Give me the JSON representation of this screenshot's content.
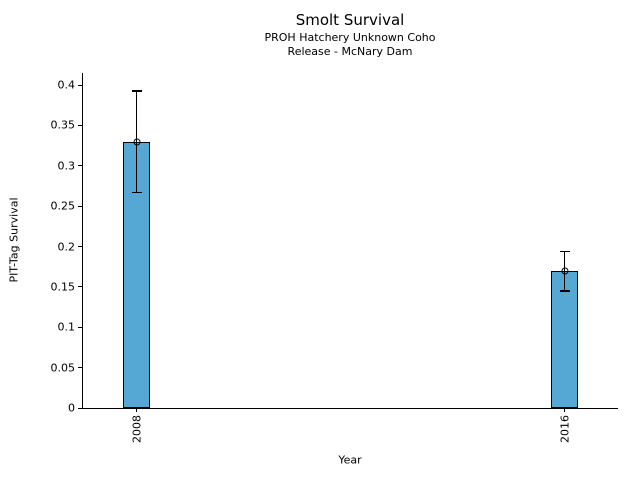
{
  "chart_data": {
    "type": "bar",
    "title": "Smolt Survival",
    "subtitle_line1": "PROH Hatchery Unknown Coho",
    "subtitle_line2": "Release - McNary Dam",
    "xlabel": "Year",
    "ylabel": "PIT-Tag Survival",
    "categories": [
      "2008",
      "2016"
    ],
    "points": [
      {
        "x": 2008,
        "label": "2008",
        "y": 0.33,
        "ci_low": 0.267,
        "ci_high": 0.393
      },
      {
        "x": 2016,
        "label": "2016",
        "y": 0.17,
        "ci_low": 0.145,
        "ci_high": 0.194
      }
    ],
    "xlim": [
      2007,
      2017
    ],
    "ylim": [
      0,
      0.415
    ],
    "yticks": {
      "values": [
        0,
        0.05,
        0.1,
        0.15,
        0.2,
        0.25,
        0.3,
        0.35,
        0.4
      ],
      "labels": [
        "0",
        "0.05",
        "0.1",
        "0.15",
        "0.2",
        "0.25",
        "0.3",
        "0.35",
        "0.4"
      ]
    },
    "bar_width_x": 0.5,
    "bar_color": "#56A8D4",
    "bar_edge_color": "#000000",
    "error_bar_color": "#000000",
    "marker": "open-circle",
    "grid": false,
    "legend": "none"
  }
}
